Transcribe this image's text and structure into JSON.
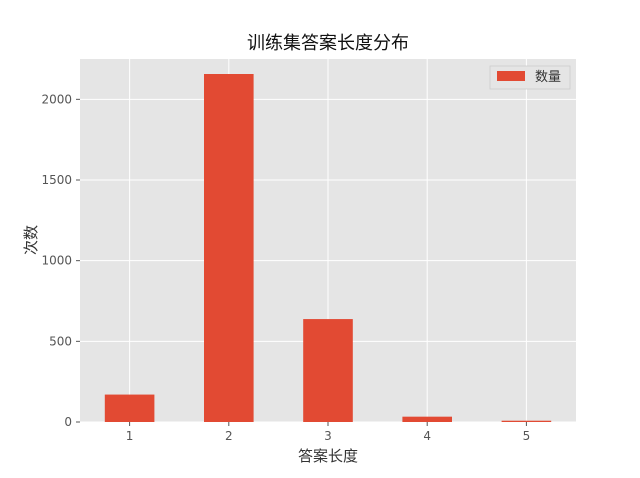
{
  "chart_data": {
    "type": "bar",
    "title": "训练集答案长度分布",
    "xlabel": "答案长度",
    "ylabel": "次数",
    "categories": [
      "1",
      "2",
      "3",
      "4",
      "5"
    ],
    "series": [
      {
        "name": "数量",
        "values": [
          170,
          2157,
          638,
          33,
          8
        ]
      }
    ],
    "ylim": [
      0,
      2250
    ],
    "yticks": [
      0,
      500,
      1000,
      1500,
      2000
    ],
    "grid": true,
    "legend_position": "top-right",
    "colors": {
      "bar": "#E24A33",
      "plot_background": "#E5E5E5",
      "grid": "#FFFFFF"
    }
  }
}
